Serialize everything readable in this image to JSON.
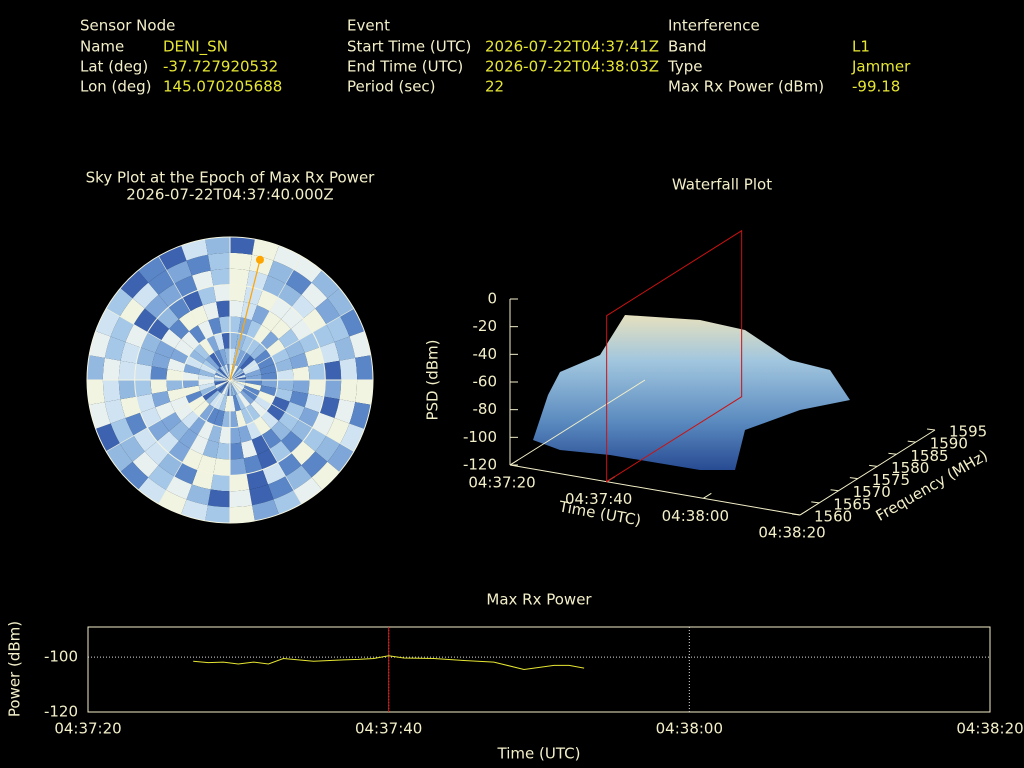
{
  "info": {
    "columns": [
      {
        "heading": "Sensor Node",
        "rows": [
          [
            "Name",
            "DENI_SN"
          ],
          [
            "Lat (deg)",
            "-37.727920532"
          ],
          [
            "Lon (deg)",
            "145.070205688"
          ]
        ]
      },
      {
        "heading": "Event",
        "rows": [
          [
            "Start Time (UTC)",
            "2026-07-22T04:37:41Z"
          ],
          [
            "End Time (UTC)",
            "2026-07-22T04:38:03Z"
          ],
          [
            "Period (sec)",
            "22"
          ]
        ]
      },
      {
        "heading": "Interference",
        "rows": [
          [
            "Band",
            "L1"
          ],
          [
            "Type",
            "Jammer"
          ],
          [
            "Max Rx Power (dBm)",
            "-99.18"
          ]
        ]
      }
    ]
  },
  "chart_data": [
    {
      "type": "polar",
      "title": "Sky Plot at the Epoch of Max Rx Power",
      "subtitle": "2026-07-22T04:37:40.000Z",
      "points": [
        {
          "azimuth": 14,
          "elevation": 12
        }
      ],
      "color": "#ffa500",
      "grid": true
    },
    {
      "type": "surface3d",
      "title": "Waterfall Plot",
      "xlabel": "Time (UTC)",
      "ylabel": "Frequency (MHz)",
      "zlabel": "PSD (dBm)",
      "xlim": [
        "04:37:20",
        "04:38:20"
      ],
      "xticks": [
        "04:37:20",
        "04:37:40",
        "04:38:00",
        "04:38:20"
      ],
      "ylim": [
        1560,
        1595
      ],
      "yticks": [
        1560,
        1565,
        1570,
        1575,
        1580,
        1585,
        1590,
        1595
      ],
      "zlim": [
        -120,
        0
      ],
      "zticks": [
        0,
        -20,
        -40,
        -60,
        -80,
        -100,
        -120
      ],
      "marker": "04:37:40",
      "marker_color": "#cc1111"
    },
    {
      "type": "line",
      "title": "Max Rx Power",
      "xlabel": "Time (UTC)",
      "ylabel": "Power (dBm)",
      "x": [
        "04:37:27",
        "04:37:28",
        "04:37:29",
        "04:37:30",
        "04:37:31",
        "04:37:32",
        "04:37:33",
        "04:37:35",
        "04:37:37",
        "04:37:38",
        "04:37:39",
        "04:37:40",
        "04:37:41",
        "04:37:43",
        "04:37:45",
        "04:37:47",
        "04:37:49",
        "04:37:51",
        "04:37:52",
        "04:37:53"
      ],
      "values": [
        -101.5,
        -102,
        -101.8,
        -102.5,
        -101.8,
        -102.5,
        -100.5,
        -101.5,
        -101,
        -100.8,
        -100.5,
        -99.5,
        -100.3,
        -100.5,
        -101.2,
        -101.8,
        -104.5,
        -103,
        -103,
        -104
      ],
      "color": "#e6e633",
      "xlim": [
        "04:37:20",
        "04:38:20"
      ],
      "xticks": [
        "04:37:20",
        "04:37:40",
        "04:38:00",
        "04:38:20"
      ],
      "ylim": [
        -120,
        -89
      ],
      "yticks": [
        -100,
        -120
      ],
      "grid": true,
      "marker": "04:37:40",
      "marker_color": "#cc1111"
    }
  ]
}
